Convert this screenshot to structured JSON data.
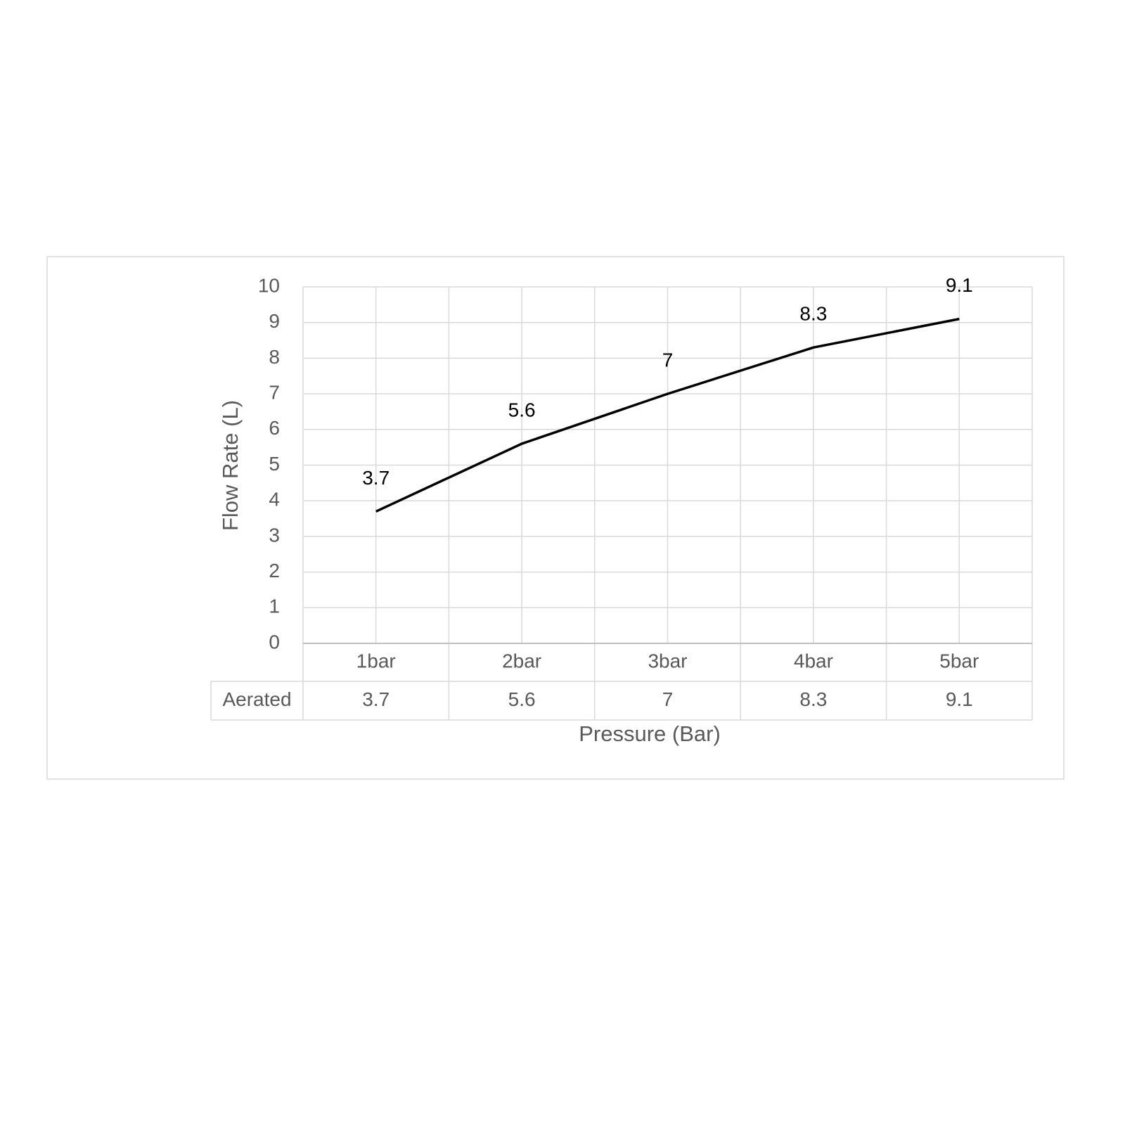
{
  "chart_data": {
    "type": "line",
    "x_axis_title": "Pressure (Bar)",
    "y_axis_title": "Flow Rate (L)",
    "categories": [
      "1bar",
      "2bar",
      "3bar",
      "4bar",
      "5bar"
    ],
    "series": [
      {
        "name": "Aerated",
        "color": "#000000",
        "values": [
          3.7,
          5.6,
          7,
          8.3,
          9.1
        ]
      }
    ],
    "ylim": [
      0,
      10
    ],
    "yticks": [
      0,
      1,
      2,
      3,
      4,
      5,
      6,
      7,
      8,
      9,
      10
    ],
    "grid": true,
    "data_labels": true,
    "data_table": true
  }
}
